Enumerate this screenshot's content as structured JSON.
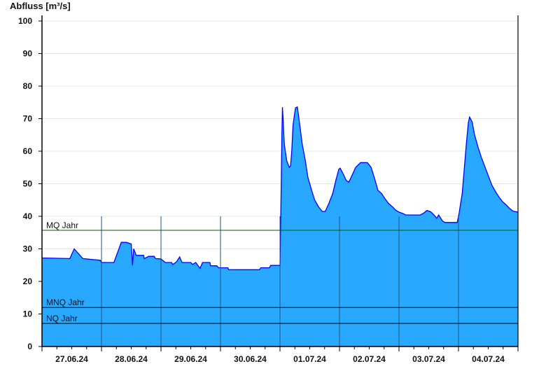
{
  "chart_data": {
    "type": "area",
    "title": "",
    "ylabel": "Abfluss [m³/s]",
    "xlabel": "",
    "ylim": [
      0,
      100
    ],
    "yticks": [
      0,
      10,
      20,
      30,
      40,
      50,
      60,
      70,
      80,
      90,
      100
    ],
    "xlim": [
      "27.06.24 00:00",
      "05.07.24 00:00"
    ],
    "xtick_labels": [
      "27.06.24",
      "28.06.24",
      "29.06.24",
      "30.06.24",
      "01.07.24",
      "02.07.24",
      "03.07.24",
      "04.07.24"
    ],
    "grid": true,
    "colors": {
      "fill": "#29a8ff",
      "line": "#0000ff",
      "mq": "#006400",
      "ref": "#000000",
      "day_lines": "#1f5480",
      "grid": "#e6e6e6"
    },
    "reference_lines": [
      {
        "label": "MQ Jahr",
        "value": 35.7
      },
      {
        "label": "MNQ Jahr",
        "value": 12.0
      },
      {
        "label": "NQ Jahr",
        "value": 7.1
      }
    ],
    "points": [
      [
        "27.06.24 00:00",
        27.2
      ],
      [
        "27.06.24 11:15",
        27.0
      ],
      [
        "27.06.24 13:00",
        30.0
      ],
      [
        "27.06.24 16:30",
        27.0
      ],
      [
        "27.06.24 23:30",
        26.5
      ],
      [
        "28.06.24 00:00",
        25.8
      ],
      [
        "28.06.24 05:00",
        25.8
      ],
      [
        "28.06.24 08:00",
        32.0
      ],
      [
        "28.06.24 10:00",
        32.0
      ],
      [
        "28.06.24 12:00",
        31.5
      ],
      [
        "28.06.24 12:30",
        25.0
      ],
      [
        "28.06.24 13:00",
        30.0
      ],
      [
        "28.06.24 14:00",
        28.0
      ],
      [
        "28.06.24 17:00",
        28.0
      ],
      [
        "28.06.24 17:15",
        27.0
      ],
      [
        "28.06.24 19:00",
        27.7
      ],
      [
        "28.06.24 21:15",
        27.7
      ],
      [
        "28.06.24 21:45",
        27.0
      ],
      [
        "29.06.24 00:00",
        26.9
      ],
      [
        "29.06.24 01:45",
        25.8
      ],
      [
        "29.06.24 04:15",
        25.8
      ],
      [
        "29.06.24 04:45",
        25.2
      ],
      [
        "29.06.24 06:15",
        26.0
      ],
      [
        "29.06.24 07:30",
        27.5
      ],
      [
        "29.06.24 08:30",
        25.8
      ],
      [
        "29.06.24 12:00",
        25.8
      ],
      [
        "29.06.24 12:45",
        25.2
      ],
      [
        "29.06.24 14:00",
        25.8
      ],
      [
        "29.06.24 15:45",
        24.0
      ],
      [
        "29.06.24 16:45",
        25.8
      ],
      [
        "29.06.24 19:45",
        25.8
      ],
      [
        "29.06.24 20:00",
        24.8
      ],
      [
        "29.06.24 22:30",
        24.8
      ],
      [
        "29.06.24 23:15",
        24.2
      ],
      [
        "30.06.24 03:00",
        24.2
      ],
      [
        "30.06.24 03:15",
        23.6
      ],
      [
        "30.06.24 15:45",
        23.6
      ],
      [
        "30.06.24 16:15",
        24.2
      ],
      [
        "30.06.24 19:45",
        24.2
      ],
      [
        "30.06.24 20:15",
        24.9
      ],
      [
        "01.07.24 00:00",
        24.9
      ],
      [
        "01.07.24 00:30",
        50.0
      ],
      [
        "01.07.24 00:45",
        65.0
      ],
      [
        "01.07.24 01:00",
        73.5
      ],
      [
        "01.07.24 01:15",
        70.0
      ],
      [
        "01.07.24 01:45",
        62.0
      ],
      [
        "01.07.24 02:45",
        57.0
      ],
      [
        "01.07.24 03:45",
        55.0
      ],
      [
        "01.07.24 04:15",
        55.5
      ],
      [
        "01.07.24 04:45",
        60.0
      ],
      [
        "01.07.24 05:15",
        68.0
      ],
      [
        "01.07.24 06:15",
        73.3
      ],
      [
        "01.07.24 07:00",
        73.6
      ],
      [
        "01.07.24 08:00",
        68.0
      ],
      [
        "01.07.24 09:00",
        62.0
      ],
      [
        "01.07.24 10:15",
        57.0
      ],
      [
        "01.07.24 11:15",
        52.0
      ],
      [
        "01.07.24 12:45",
        48.0
      ],
      [
        "01.07.24 14:00",
        45.0
      ],
      [
        "01.07.24 15:30",
        43.0
      ],
      [
        "01.07.24 17:00",
        41.5
      ],
      [
        "01.07.24 18:15",
        41.5
      ],
      [
        "01.07.24 19:45",
        44.0
      ],
      [
        "01.07.24 21:15",
        47.0
      ],
      [
        "01.07.24 22:30",
        51.0
      ],
      [
        "01.07.24 23:45",
        54.5
      ],
      [
        "02.07.24 00:15",
        54.8
      ],
      [
        "02.07.24 01:30",
        53.0
      ],
      [
        "02.07.24 02:45",
        51.0
      ],
      [
        "02.07.24 03:45",
        50.5
      ],
      [
        "02.07.24 05:00",
        52.5
      ],
      [
        "02.07.24 06:30",
        55.0
      ],
      [
        "02.07.24 08:30",
        56.5
      ],
      [
        "02.07.24 11:15",
        56.5
      ],
      [
        "02.07.24 12:45",
        55.0
      ],
      [
        "02.07.24 14:00",
        52.0
      ],
      [
        "02.07.24 15:30",
        48.0
      ],
      [
        "02.07.24 17:00",
        47.0
      ],
      [
        "02.07.24 18:15",
        45.5
      ],
      [
        "02.07.24 19:45",
        44.0
      ],
      [
        "02.07.24 21:15",
        43.0
      ],
      [
        "02.07.24 22:30",
        42.0
      ],
      [
        "03.07.24 00:00",
        41.3
      ],
      [
        "03.07.24 01:30",
        40.9
      ],
      [
        "03.07.24 02:45",
        40.4
      ],
      [
        "03.07.24 08:30",
        40.4
      ],
      [
        "03.07.24 10:00",
        41.0
      ],
      [
        "03.07.24 11:15",
        41.8
      ],
      [
        "03.07.24 12:45",
        41.4
      ],
      [
        "03.07.24 14:00",
        40.5
      ],
      [
        "03.07.24 15:15",
        39.4
      ],
      [
        "03.07.24 16:00",
        40.4
      ],
      [
        "03.07.24 17:30",
        38.6
      ],
      [
        "03.07.24 18:30",
        38.1
      ],
      [
        "03.07.24 23:30",
        38.1
      ],
      [
        "04.07.24 00:15",
        41.0
      ],
      [
        "04.07.24 01:30",
        47.0
      ],
      [
        "04.07.24 02:15",
        54.0
      ],
      [
        "04.07.24 03:15",
        63.0
      ],
      [
        "04.07.24 04:00",
        69.0
      ],
      [
        "04.07.24 04:30",
        70.5
      ],
      [
        "04.07.24 05:30",
        69.0
      ],
      [
        "04.07.24 06:30",
        65.0
      ],
      [
        "04.07.24 08:00",
        61.0
      ],
      [
        "04.07.24 09:15",
        58.0
      ],
      [
        "04.07.24 10:45",
        55.0
      ],
      [
        "04.07.24 12:15",
        52.0
      ],
      [
        "04.07.24 13:30",
        49.5
      ],
      [
        "04.07.24 15:00",
        47.5
      ],
      [
        "04.07.24 16:15",
        46.0
      ],
      [
        "04.07.24 17:45",
        44.5
      ],
      [
        "04.07.24 19:15",
        43.5
      ],
      [
        "04.07.24 20:30",
        42.5
      ],
      [
        "04.07.24 22:00",
        41.6
      ],
      [
        "05.07.24 00:00",
        41.3
      ]
    ]
  }
}
